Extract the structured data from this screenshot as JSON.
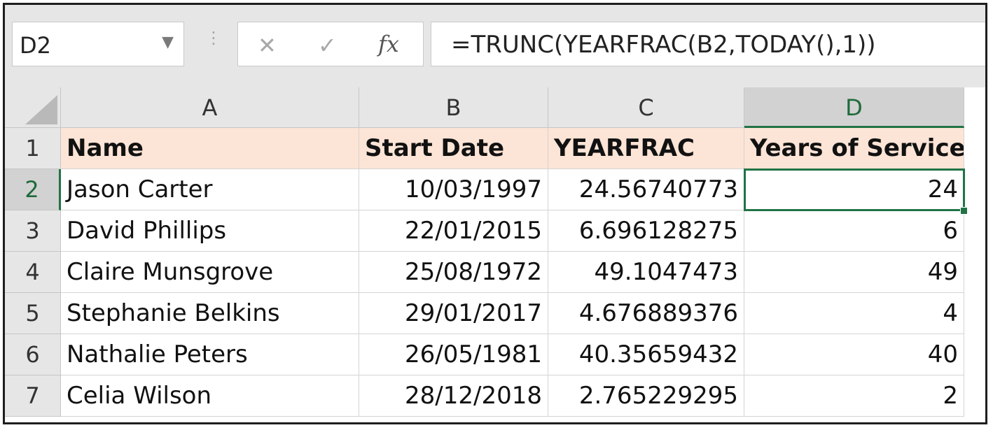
{
  "formula_bar": {
    "name_box": "D2",
    "name_box_caret": "▼",
    "separator": "⋮",
    "cancel_glyph": "✕",
    "enter_glyph": "✓",
    "fx_label": "fx",
    "formula": "=TRUNC(YEARFRAC(B2,TODAY(),1))"
  },
  "grid": {
    "column_headers": [
      "A",
      "B",
      "C",
      "D"
    ],
    "row_headers": [
      "1",
      "2",
      "3",
      "4",
      "5",
      "6",
      "7"
    ],
    "header_row": [
      "Name",
      "Start Date",
      "YEARFRAC",
      "Years of Service"
    ],
    "rows": [
      [
        "Jason Carter",
        "10/03/1997",
        "24.56740773",
        "24"
      ],
      [
        "David Phillips",
        "22/01/2015",
        "6.696128275",
        "6"
      ],
      [
        "Claire Munsgrove",
        "25/08/1972",
        "49.1047473",
        "49"
      ],
      [
        "Stephanie Belkins",
        "29/01/2017",
        "4.676889376",
        "4"
      ],
      [
        "Nathalie Peters",
        "26/05/1981",
        "40.35659432",
        "40"
      ],
      [
        "Celia Wilson",
        "28/12/2018",
        "2.765229295",
        "2"
      ]
    ],
    "active_cell": "D2"
  },
  "colors": {
    "header_fill": "#fce4d6",
    "selection_green": "#217346"
  }
}
